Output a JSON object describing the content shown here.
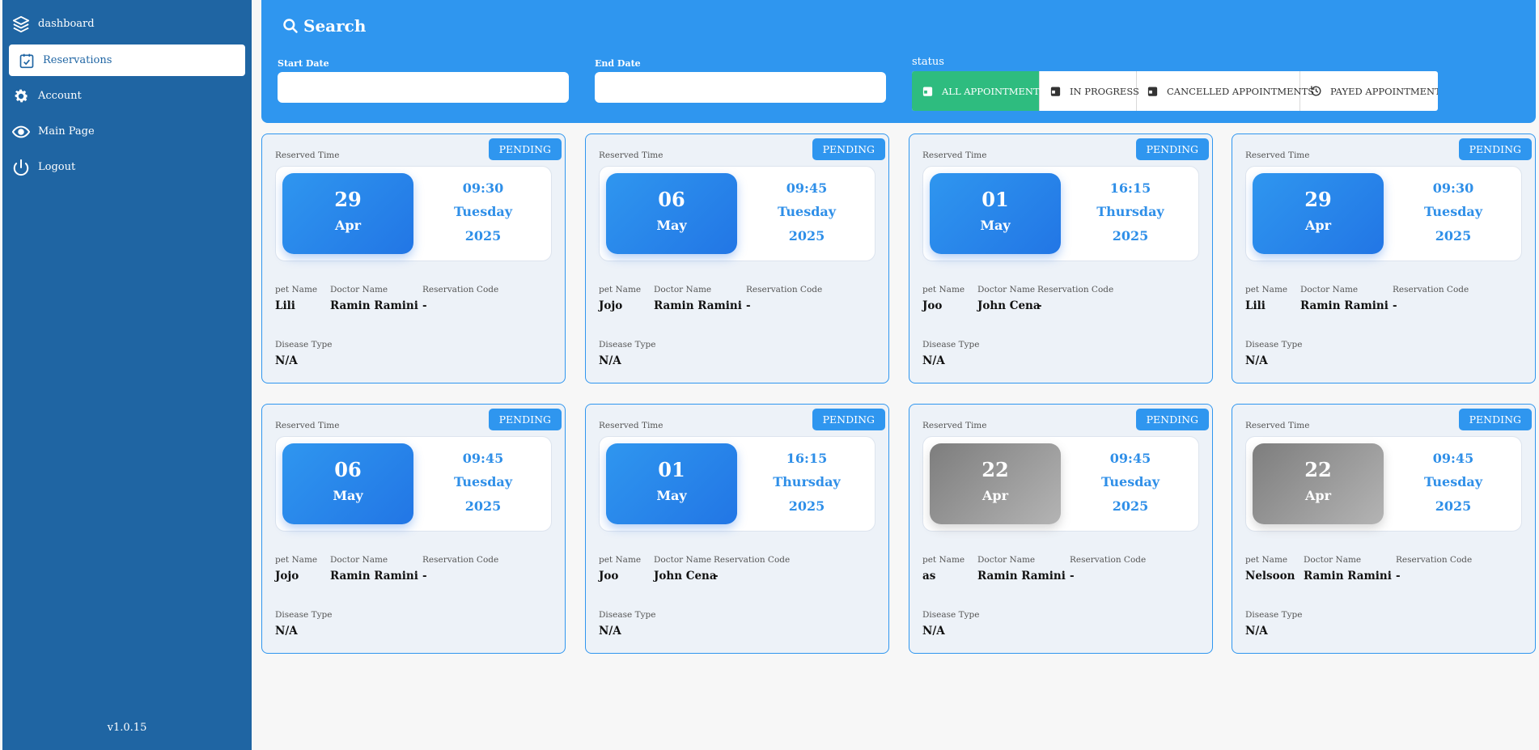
{
  "sidebar": {
    "items": [
      {
        "label": "dashboard",
        "icon": "layers-icon"
      },
      {
        "label": "Reservations",
        "icon": "calendar-check-icon"
      },
      {
        "label": "Account",
        "icon": "gear-icon"
      },
      {
        "label": "Main Page",
        "icon": "eye-icon"
      },
      {
        "label": "Logout",
        "icon": "power-icon"
      }
    ],
    "version": "v1.0.15"
  },
  "search": {
    "title": "Search",
    "start_label": "Start Date",
    "end_label": "End Date",
    "start_value": "",
    "end_value": "",
    "status_label": "status",
    "status_options": [
      {
        "label": "ALL APPOINTMENTS",
        "active": true
      },
      {
        "label": "IN PROGRESS",
        "active": false
      },
      {
        "label": "CANCELLED APPOINTMENTS",
        "active": false
      },
      {
        "label": "PAYED APPOINTMENTS",
        "active": false
      }
    ]
  },
  "labels": {
    "reserved_time": "Reserved Time",
    "pet_name": "pet Name",
    "doctor_name": "Doctor Name",
    "reservation_code": "Reservation Code",
    "disease_type": "Disease Type"
  },
  "cards": [
    {
      "status": "PENDING",
      "day": "29",
      "month": "Apr",
      "time": "09:30",
      "weekday": "Tuesday",
      "year": "2025",
      "pet": "Lili",
      "doctor": "Ramin Ramini",
      "code": "-",
      "disease": "N/A",
      "past": false
    },
    {
      "status": "PENDING",
      "day": "06",
      "month": "May",
      "time": "09:45",
      "weekday": "Tuesday",
      "year": "2025",
      "pet": "Jojo",
      "doctor": "Ramin Ramini",
      "code": "-",
      "disease": "N/A",
      "past": false
    },
    {
      "status": "PENDING",
      "day": "01",
      "month": "May",
      "time": "16:15",
      "weekday": "Thursday",
      "year": "2025",
      "pet": "Joo",
      "doctor": "John Cena",
      "code": "-",
      "disease": "N/A",
      "past": false
    },
    {
      "status": "PENDING",
      "day": "29",
      "month": "Apr",
      "time": "09:30",
      "weekday": "Tuesday",
      "year": "2025",
      "pet": "Lili",
      "doctor": "Ramin Ramini",
      "code": "-",
      "disease": "N/A",
      "past": false
    },
    {
      "status": "PENDING",
      "day": "06",
      "month": "May",
      "time": "09:45",
      "weekday": "Tuesday",
      "year": "2025",
      "pet": "Jojo",
      "doctor": "Ramin Ramini",
      "code": "-",
      "disease": "N/A",
      "past": false
    },
    {
      "status": "PENDING",
      "day": "01",
      "month": "May",
      "time": "16:15",
      "weekday": "Thursday",
      "year": "2025",
      "pet": "Joo",
      "doctor": "John Cena",
      "code": "-",
      "disease": "N/A",
      "past": false
    },
    {
      "status": "PENDING",
      "day": "22",
      "month": "Apr",
      "time": "09:45",
      "weekday": "Tuesday",
      "year": "2025",
      "pet": "as",
      "doctor": "Ramin Ramini",
      "code": "-",
      "disease": "N/A",
      "past": true
    },
    {
      "status": "PENDING",
      "day": "22",
      "month": "Apr",
      "time": "09:45",
      "weekday": "Tuesday",
      "year": "2025",
      "pet": "Nelsoon",
      "doctor": "Ramin Ramini",
      "code": "-",
      "disease": "N/A",
      "past": true
    }
  ]
}
